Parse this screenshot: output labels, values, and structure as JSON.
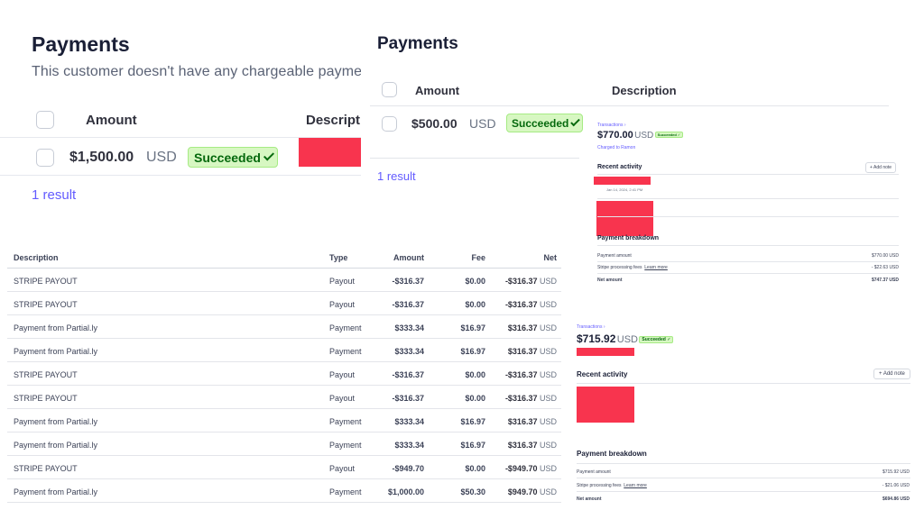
{
  "panel1": {
    "title": "Payments",
    "subtitle": "This customer doesn't have any chargeable payme",
    "columns": {
      "amount": "Amount",
      "description": "Descripti"
    },
    "row": {
      "amount": "$1,500.00",
      "currency": "USD",
      "status": "Succeeded"
    },
    "result_count": "1 result"
  },
  "panel2": {
    "title": "Payments",
    "columns": {
      "amount": "Amount",
      "description": "Description"
    },
    "row": {
      "amount": "$500.00",
      "currency": "USD",
      "status": "Succeeded"
    },
    "result_count": "1 result"
  },
  "table": {
    "headers": {
      "description": "Description",
      "type": "Type",
      "amount": "Amount",
      "fee": "Fee",
      "net": "Net"
    },
    "rows": [
      {
        "description": "STRIPE PAYOUT",
        "type": "Payout",
        "amount": "-$316.37",
        "fee": "$0.00",
        "net": "-$316.37",
        "currency": "USD"
      },
      {
        "description": "STRIPE PAYOUT",
        "type": "Payout",
        "amount": "-$316.37",
        "fee": "$0.00",
        "net": "-$316.37",
        "currency": "USD"
      },
      {
        "description": "Payment from Partial.ly",
        "type": "Payment",
        "amount": "$333.34",
        "fee": "$16.97",
        "net": "$316.37",
        "currency": "USD"
      },
      {
        "description": "Payment from Partial.ly",
        "type": "Payment",
        "amount": "$333.34",
        "fee": "$16.97",
        "net": "$316.37",
        "currency": "USD"
      },
      {
        "description": "STRIPE PAYOUT",
        "type": "Payout",
        "amount": "-$316.37",
        "fee": "$0.00",
        "net": "-$316.37",
        "currency": "USD"
      },
      {
        "description": "STRIPE PAYOUT",
        "type": "Payout",
        "amount": "-$316.37",
        "fee": "$0.00",
        "net": "-$316.37",
        "currency": "USD"
      },
      {
        "description": "Payment from Partial.ly",
        "type": "Payment",
        "amount": "$333.34",
        "fee": "$16.97",
        "net": "$316.37",
        "currency": "USD"
      },
      {
        "description": "Payment from Partial.ly",
        "type": "Payment",
        "amount": "$333.34",
        "fee": "$16.97",
        "net": "$316.37",
        "currency": "USD"
      },
      {
        "description": "STRIPE PAYOUT",
        "type": "Payout",
        "amount": "-$949.70",
        "fee": "$0.00",
        "net": "-$949.70",
        "currency": "USD"
      },
      {
        "description": "Payment from Partial.ly",
        "type": "Payment",
        "amount": "$1,000.00",
        "fee": "$50.30",
        "net": "$949.70",
        "currency": "USD"
      }
    ]
  },
  "detail1": {
    "breadcrumb": "Transactions",
    "amount": "$770.00",
    "currency": "USD",
    "status": "Succeeded",
    "charged_to": "Charged to Ramon",
    "recent_activity": "Recent activity",
    "add_note": "+ Add note",
    "activity_time": "Jan 14, 2024, 2:41 PM",
    "breakdown_title": "Payment breakdown",
    "payment_amount_label": "Payment amount",
    "payment_amount": "$770.00 USD",
    "fees_label": "Stripe processing fees",
    "learn_more": "Learn more",
    "fees": "- $22.63 USD",
    "net_label": "Net amount",
    "net": "$747.37 USD"
  },
  "detail2": {
    "breadcrumb": "Transactions",
    "amount": "$715.92",
    "currency": "USD",
    "status": "Succeeded",
    "recent_activity": "Recent activity",
    "add_note": "+ Add note",
    "breakdown_title": "Payment breakdown",
    "payment_amount_label": "Payment amount",
    "payment_amount": "$715.92 USD",
    "fees_label": "Stripe processing fees",
    "learn_more": "Learn more",
    "fees": "- $21.06 USD",
    "net_label": "Net amount",
    "net": "$694.86 USD"
  },
  "colors": {
    "accent": "#635bff",
    "success_bg": "#d7f7c2",
    "success_text": "#05690d",
    "redaction": "#f8344e"
  }
}
